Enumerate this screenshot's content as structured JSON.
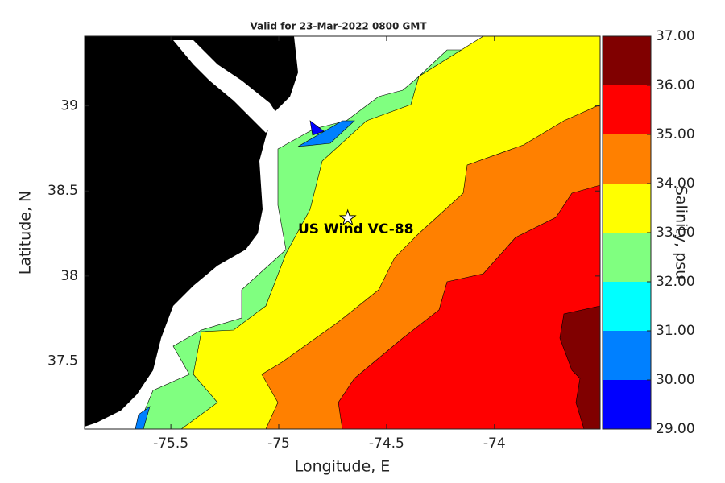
{
  "chart_data": {
    "type": "contour",
    "title": "Valid for 23-Mar-2022 0800 GMT",
    "x_label": "Longitude, E",
    "y_label": "Latitude, N",
    "xlim": [
      -75.9,
      -73.51
    ],
    "ylim": [
      37.1,
      39.41
    ],
    "xticks": [
      -75.5,
      -75,
      -74.5,
      -74
    ],
    "yticks": [
      37.5,
      38,
      38.5,
      39
    ],
    "colorbar": {
      "label": "Salinity, psu",
      "lim": [
        29,
        37
      ],
      "ticks": [
        {
          "value": 29,
          "label": "29.00"
        },
        {
          "value": 30,
          "label": "30.00"
        },
        {
          "value": 31,
          "label": "31.00"
        },
        {
          "value": 32,
          "label": "32.00"
        },
        {
          "value": 33,
          "label": "33.00"
        },
        {
          "value": 34,
          "label": "34.00"
        },
        {
          "value": 35,
          "label": "35.00"
        },
        {
          "value": 36,
          "label": "36.00"
        },
        {
          "value": 37,
          "label": "37.00"
        }
      ],
      "colors": [
        "#0000ff",
        "#0080ff",
        "#00ffff",
        "#80ff80",
        "#ffff00",
        "#ff8000",
        "#ff0000",
        "#800000"
      ]
    },
    "annotation": {
      "text": "US Wind VC-88",
      "x": -74.68,
      "y": 38.34
    }
  }
}
